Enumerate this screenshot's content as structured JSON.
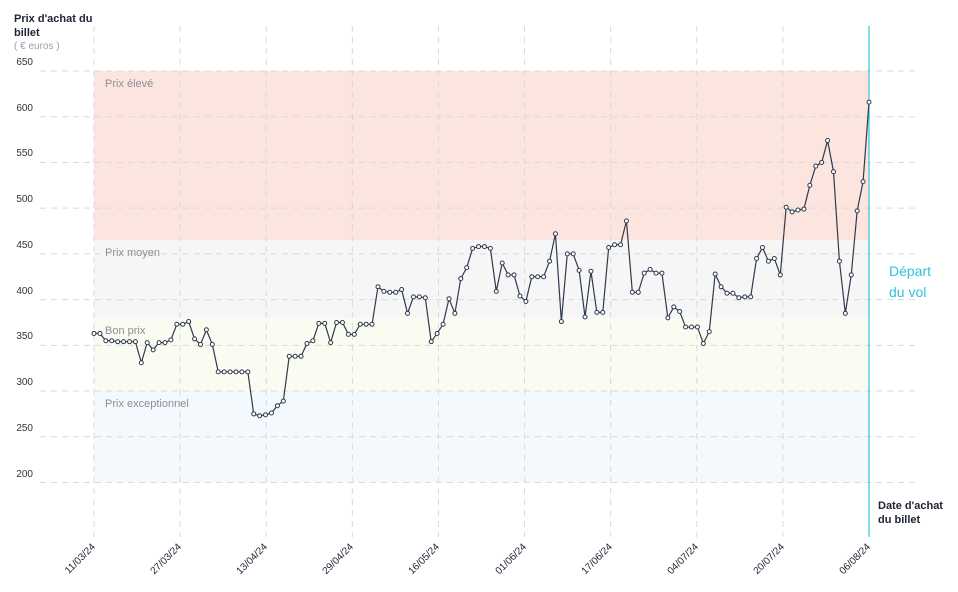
{
  "chart_data": {
    "type": "line",
    "ylabel": "Prix d'achat du billet",
    "yunit": "( € euros )",
    "xlabel": "Date d'achat du billet",
    "annotation": "Départ du vol",
    "ylim": [
      150,
      650
    ],
    "yticks": [
      200,
      250,
      300,
      350,
      400,
      450,
      500,
      550,
      600,
      650
    ],
    "xticks": [
      "11/03/24",
      "27/03/24",
      "13/04/24",
      "29/04/24",
      "16/05/24",
      "01/06/24",
      "17/06/24",
      "04/07/24",
      "20/07/24",
      "06/08/24"
    ],
    "zones": [
      {
        "label": "Prix élevé",
        "from": 465,
        "to": 650,
        "color": "#fde5df"
      },
      {
        "label": "Prix moyen",
        "from": 380,
        "to": 465,
        "color": "#f6f6f6"
      },
      {
        "label": "Bon prix",
        "from": 300,
        "to": 380,
        "color": "#fbfcf1"
      },
      {
        "label": "Prix exceptionnel",
        "from": 200,
        "to": 300,
        "color": "#f3f9fd"
      }
    ],
    "colors": {
      "line": "#2e3a4e",
      "marker_fill": "#ffffff",
      "depart": "#2ec4d6",
      "grid": "#d9d9d9"
    },
    "series": [
      {
        "values": [
          363,
          363,
          355,
          355,
          354,
          354,
          354,
          354,
          331,
          353,
          345,
          353,
          353,
          356,
          373,
          373,
          376,
          357,
          351,
          367,
          351,
          321,
          321,
          321,
          321,
          321,
          321,
          275,
          273,
          274,
          276,
          284,
          289,
          338,
          338,
          338,
          352,
          355,
          374,
          374,
          353,
          375,
          375,
          362,
          362,
          373,
          373,
          373,
          414,
          409,
          408,
          408,
          411,
          385,
          403,
          403,
          402,
          354,
          363,
          373,
          401,
          385,
          423,
          435,
          456,
          458,
          458,
          456,
          409,
          440,
          427,
          427,
          404,
          398,
          425,
          425,
          425,
          442,
          472,
          376,
          450,
          450,
          432,
          381,
          431,
          386,
          386,
          457,
          460,
          460,
          486,
          408,
          408,
          429,
          433,
          429,
          429,
          380,
          392,
          387,
          370,
          370,
          370,
          352,
          365,
          428,
          414,
          407,
          407,
          402,
          403,
          403,
          445,
          457,
          442,
          445,
          427,
          501,
          496,
          498,
          499,
          525,
          546,
          550,
          574,
          540,
          442,
          385,
          427,
          497,
          529,
          616
        ]
      }
    ]
  }
}
